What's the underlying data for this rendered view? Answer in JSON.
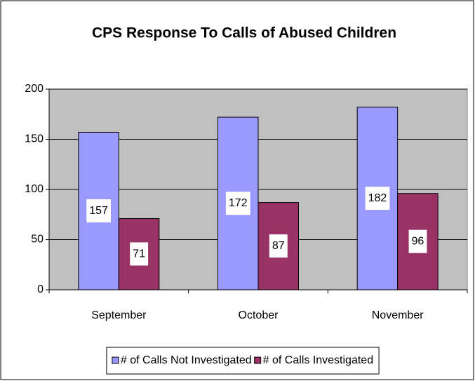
{
  "chart_data": {
    "type": "bar",
    "title": "CPS Response To Calls of Abused Children",
    "categories": [
      "September",
      "October",
      "November"
    ],
    "series": [
      {
        "name": "# of Calls Not Investigated",
        "color": "#9999ff",
        "values": [
          157,
          172,
          182
        ]
      },
      {
        "name": "# of Calls Investigated",
        "color": "#993366",
        "values": [
          71,
          87,
          96
        ]
      }
    ],
    "ylim": [
      0,
      200
    ],
    "yticks": [
      0,
      50,
      100,
      150,
      200
    ],
    "grid": true,
    "legend": "bottom"
  }
}
